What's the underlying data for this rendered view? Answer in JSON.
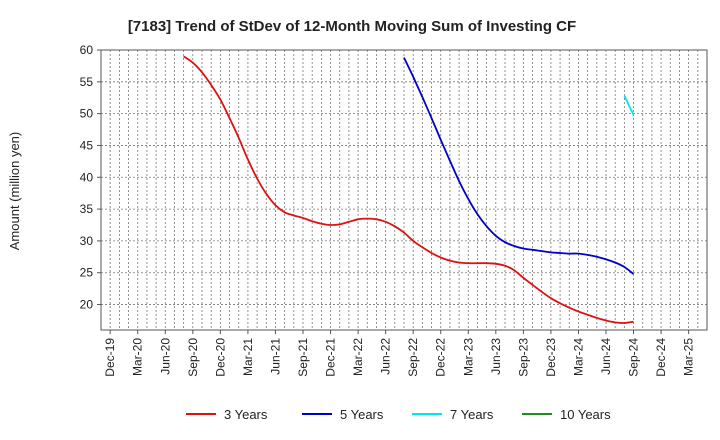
{
  "chart_data": {
    "type": "line",
    "title": "[7183]  Trend of StDev of 12-Month Moving Sum of Investing CF",
    "ylabel": "Amount (million yen)",
    "xlabel": "",
    "ylim": [
      16,
      60
    ],
    "yticks": [
      20,
      25,
      30,
      35,
      40,
      45,
      50,
      55,
      60
    ],
    "xticks": [
      "Dec-19",
      "Mar-20",
      "Jun-20",
      "Sep-20",
      "Dec-20",
      "Mar-21",
      "Jun-21",
      "Sep-21",
      "Dec-21",
      "Mar-22",
      "Jun-22",
      "Sep-22",
      "Dec-22",
      "Mar-23",
      "Jun-23",
      "Sep-23",
      "Dec-23",
      "Mar-24",
      "Jun-24",
      "Sep-24",
      "Dec-24",
      "Mar-25"
    ],
    "grid": true,
    "legend_position": "bottom",
    "series": [
      {
        "name": "3 Years",
        "color": "#dd1111",
        "points": [
          [
            "Aug-20",
            59.0
          ],
          [
            "Sep-20",
            58.0
          ],
          [
            "Oct-20",
            56.5
          ],
          [
            "Nov-20",
            54.5
          ],
          [
            "Dec-20",
            52.2
          ],
          [
            "Jan-21",
            49.3
          ],
          [
            "Feb-21",
            46.2
          ],
          [
            "Mar-21",
            42.8
          ],
          [
            "Apr-21",
            39.8
          ],
          [
            "May-21",
            37.4
          ],
          [
            "Jun-21",
            35.6
          ],
          [
            "Jul-21",
            34.5
          ],
          [
            "Aug-21",
            34.0
          ],
          [
            "Sep-21",
            33.6
          ],
          [
            "Oct-21",
            33.1
          ],
          [
            "Nov-21",
            32.7
          ],
          [
            "Dec-21",
            32.5
          ],
          [
            "Jan-22",
            32.6
          ],
          [
            "Feb-22",
            33.0
          ],
          [
            "Mar-22",
            33.4
          ],
          [
            "Apr-22",
            33.5
          ],
          [
            "May-22",
            33.4
          ],
          [
            "Jun-22",
            33.0
          ],
          [
            "Jul-22",
            32.3
          ],
          [
            "Aug-22",
            31.3
          ],
          [
            "Sep-22",
            30.0
          ],
          [
            "Oct-22",
            29.0
          ],
          [
            "Nov-22",
            28.1
          ],
          [
            "Dec-22",
            27.4
          ],
          [
            "Jan-23",
            26.9
          ],
          [
            "Feb-23",
            26.6
          ],
          [
            "Mar-23",
            26.5
          ],
          [
            "Apr-23",
            26.5
          ],
          [
            "May-23",
            26.5
          ],
          [
            "Jun-23",
            26.4
          ],
          [
            "Jul-23",
            26.1
          ],
          [
            "Aug-23",
            25.4
          ],
          [
            "Sep-23",
            24.2
          ],
          [
            "Oct-23",
            23.1
          ],
          [
            "Nov-23",
            22.0
          ],
          [
            "Dec-23",
            21.0
          ],
          [
            "Jan-24",
            20.2
          ],
          [
            "Feb-24",
            19.5
          ],
          [
            "Mar-24",
            18.9
          ],
          [
            "Apr-24",
            18.4
          ],
          [
            "May-24",
            17.9
          ],
          [
            "Jun-24",
            17.5
          ],
          [
            "Jul-24",
            17.2
          ],
          [
            "Aug-24",
            17.1
          ],
          [
            "Sep-24",
            17.3
          ]
        ]
      },
      {
        "name": "5 Years",
        "color": "#0000cc",
        "points": [
          [
            "Aug-22",
            58.8
          ],
          [
            "Sep-22",
            55.8
          ],
          [
            "Oct-22",
            52.6
          ],
          [
            "Nov-22",
            49.3
          ],
          [
            "Dec-22",
            45.9
          ],
          [
            "Jan-23",
            42.6
          ],
          [
            "Feb-23",
            39.4
          ],
          [
            "Mar-23",
            36.6
          ],
          [
            "Apr-23",
            34.2
          ],
          [
            "May-23",
            32.3
          ],
          [
            "Jun-23",
            30.8
          ],
          [
            "Jul-23",
            29.8
          ],
          [
            "Aug-23",
            29.2
          ],
          [
            "Sep-23",
            28.8
          ],
          [
            "Oct-23",
            28.6
          ],
          [
            "Nov-23",
            28.4
          ],
          [
            "Dec-23",
            28.2
          ],
          [
            "Jan-24",
            28.1
          ],
          [
            "Feb-24",
            28.0
          ],
          [
            "Mar-24",
            28.0
          ],
          [
            "Apr-24",
            27.8
          ],
          [
            "May-24",
            27.5
          ],
          [
            "Jun-24",
            27.1
          ],
          [
            "Jul-24",
            26.6
          ],
          [
            "Aug-24",
            25.9
          ],
          [
            "Sep-24",
            24.8
          ]
        ]
      },
      {
        "name": "7 Years",
        "color": "#00e5ee",
        "points": [
          [
            "Aug-24",
            52.8
          ],
          [
            "Sep-24",
            49.8
          ]
        ]
      },
      {
        "name": "10 Years",
        "color": "#228b22",
        "points": []
      }
    ]
  }
}
